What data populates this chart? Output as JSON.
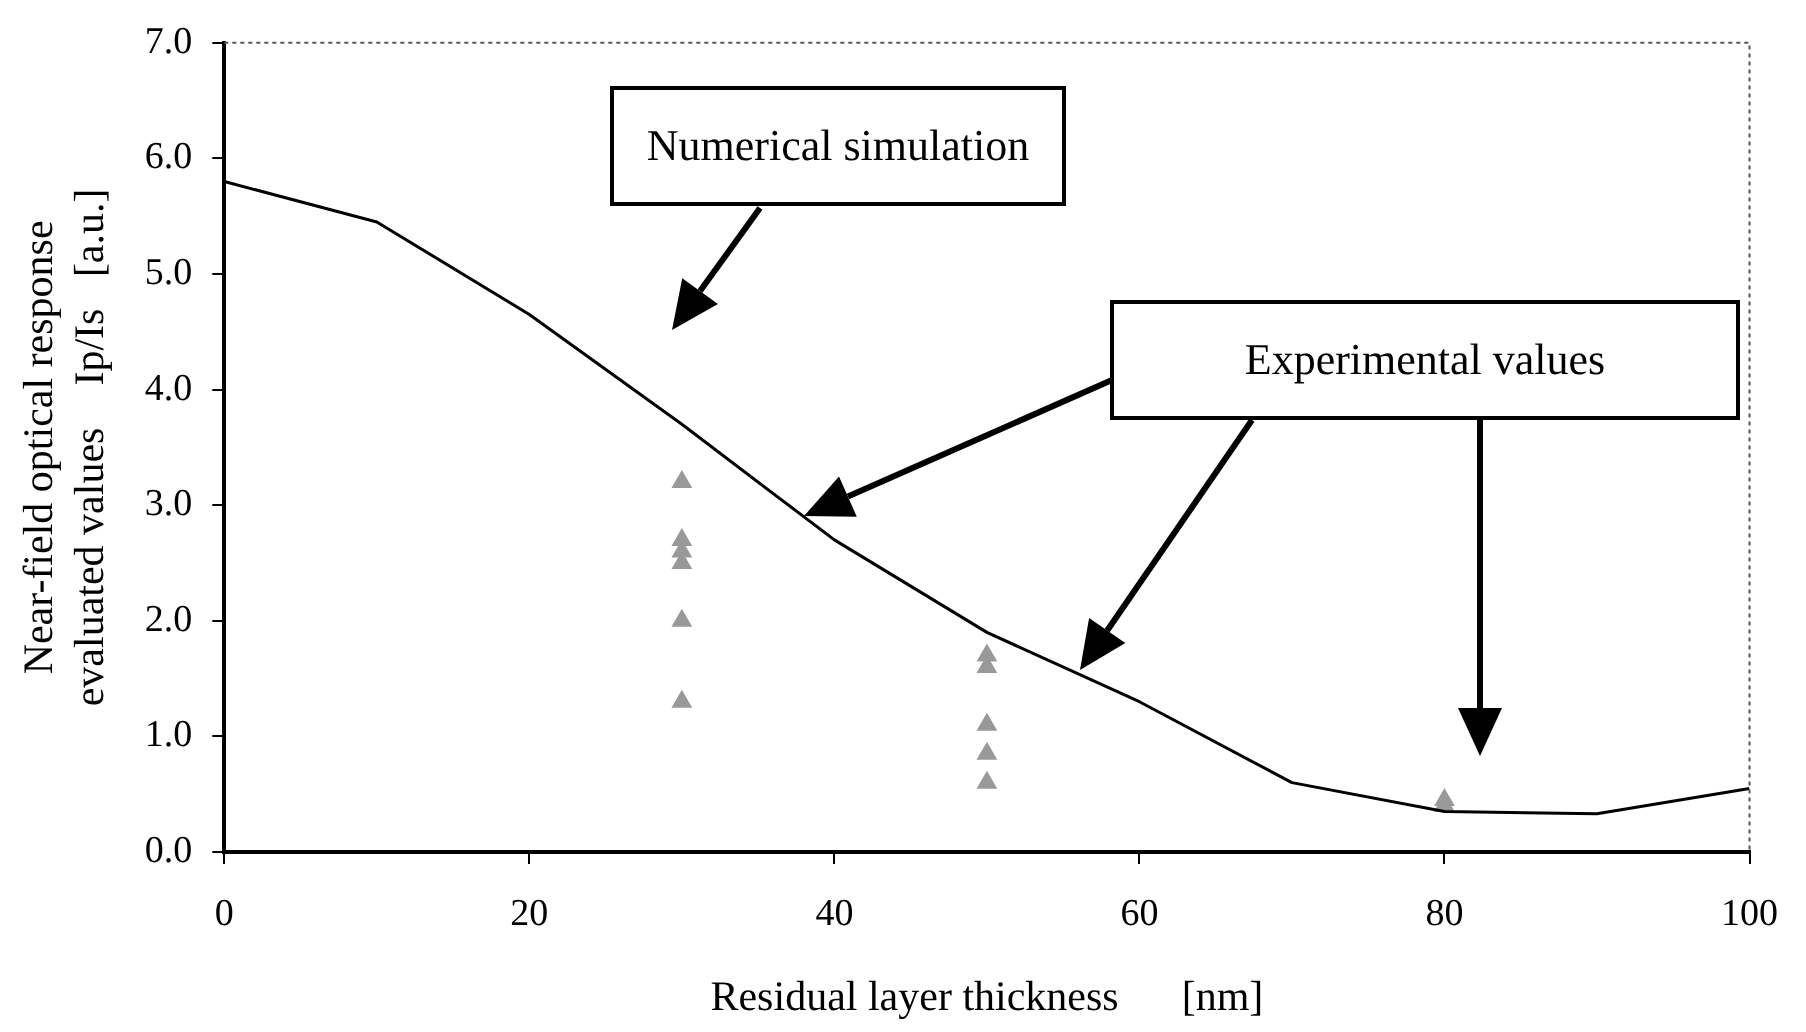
{
  "chart_data": {
    "type": "line",
    "xlabel": "Residual layer thickness      [nm]",
    "ylabel": [
      "Near-field optical response",
      "evaluated values    Ip/Is   [a.u.]"
    ],
    "xlim": [
      0,
      100
    ],
    "xticks": [
      0,
      20,
      40,
      60,
      80,
      100
    ],
    "ylim": [
      0,
      7
    ],
    "yticks": [
      {
        "value": 0,
        "label": "0.0"
      },
      {
        "value": 1,
        "label": "1.0"
      },
      {
        "value": 2,
        "label": "2.0"
      },
      {
        "value": 3,
        "label": "3.0"
      },
      {
        "value": 4,
        "label": "4.0"
      },
      {
        "value": 5,
        "label": "5.0"
      },
      {
        "value": 6,
        "label": "6.0"
      },
      {
        "value": 7,
        "label": "7.0"
      }
    ],
    "grid": false,
    "legend": false,
    "series": [
      {
        "color": "#000000",
        "marker": "none",
        "line_style": "solid",
        "x": [
          0,
          10,
          20,
          30,
          40,
          50,
          60,
          70,
          80,
          90,
          100
        ],
        "values": [
          5.8,
          5.45,
          4.65,
          3.7,
          2.7,
          1.9,
          1.3,
          0.6,
          0.35,
          0.33,
          0.55
        ]
      },
      {
        "type": "scatter",
        "color": "#999999",
        "marker": "triangle",
        "x": [
          30,
          30,
          30,
          30,
          30,
          30,
          50,
          50,
          50,
          50,
          50,
          80,
          80
        ],
        "values": [
          3.2,
          2.7,
          2.6,
          2.5,
          2.0,
          1.3,
          1.7,
          1.6,
          1.1,
          0.85,
          0.6,
          0.45,
          0.4
        ]
      }
    ],
    "annotations": [
      "Numerical simulation",
      "Experimental values"
    ]
  }
}
